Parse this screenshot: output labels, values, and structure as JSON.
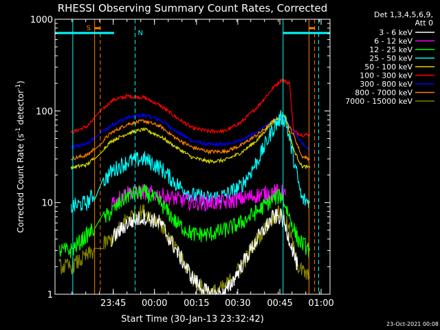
{
  "chart_data": {
    "type": "line",
    "title": "RHESSI Observing Summary Count Rates, Corrected",
    "xlabel": "Start Time (30-Jan-13 23:32:42)",
    "ylabel_main": "Corrected Count Rate (s",
    "ylabel_sup1": "-1",
    "ylabel_mid": " detector",
    "ylabel_sup2": "-1",
    "ylabel_end": ")",
    "yscale": "log",
    "ylim": [
      1,
      1000
    ],
    "xlim_minutes": [
      -16,
      18
    ],
    "y_ticks": [
      "1",
      "10",
      "100",
      "1000"
    ],
    "x_ticks": [
      {
        "t": -8.8,
        "label": "23:45"
      },
      {
        "t": -3.7,
        "label": "00:00"
      },
      {
        "t": 1.5,
        "label": "00:15"
      },
      {
        "t": 6.6,
        "label": "00:30"
      },
      {
        "t": 11.8,
        "label": "00:45"
      },
      {
        "t": 16.9,
        "label": "01:00"
      }
    ],
    "legend": {
      "header": "Det 1,3,4,5,6,9,",
      "subheader": "Att 0",
      "entries": [
        {
          "label": "3 - 6 keV",
          "color": "#ffffff"
        },
        {
          "label": "6 - 12 keV",
          "color": "#ff00ff"
        },
        {
          "label": "12 - 25 keV",
          "color": "#00ff00"
        },
        {
          "label": "25 - 50 keV",
          "color": "#00ffff"
        },
        {
          "label": "50 - 100 keV",
          "color": "#d7d700"
        },
        {
          "label": "100 - 300 keV",
          "color": "#ff0000"
        },
        {
          "label": "300 - 800 keV",
          "color": "#0000ff"
        },
        {
          "label": "800 - 7000 keV",
          "color": "#ff7f00"
        },
        {
          "label": "7000 - 15000 keV",
          "color": "#808000"
        }
      ]
    },
    "annotations": {
      "saa_label": "S",
      "night_label": "N"
    },
    "series": [
      {
        "band": "300 - 800 keV",
        "color": "#0000ff",
        "x": [
          -14,
          -12,
          -9,
          -7,
          -5,
          -3,
          -1,
          1,
          3,
          5,
          7,
          9,
          11,
          12,
          12.5,
          13.5,
          14.5,
          15.5
        ],
        "y": [
          40,
          44,
          70,
          85,
          90,
          80,
          60,
          47,
          43,
          43,
          48,
          58,
          78,
          85,
          82,
          62,
          45,
          38
        ]
      },
      {
        "band": "100 - 300 keV",
        "color": "#ff0000",
        "x": [
          -14,
          -12,
          -9,
          -7,
          -5,
          -3,
          -1,
          1,
          3,
          5,
          7,
          9,
          11,
          12,
          13,
          13.5,
          14.5,
          15.5
        ],
        "y": [
          58,
          68,
          130,
          145,
          140,
          115,
          85,
          65,
          60,
          60,
          75,
          110,
          180,
          220,
          200,
          60,
          55,
          55
        ]
      },
      {
        "band": "800 - 7000 keV",
        "color": "#ff7f00",
        "x": [
          -14,
          -12,
          -9,
          -7,
          -5,
          -3,
          -1,
          1,
          3,
          5,
          7,
          9,
          11,
          12,
          12.5,
          13.5,
          14.5,
          15.5
        ],
        "y": [
          30,
          33,
          58,
          72,
          78,
          68,
          50,
          40,
          36,
          36,
          42,
          55,
          75,
          82,
          80,
          55,
          32,
          30
        ]
      },
      {
        "band": "50 - 100 keV",
        "color": "#d7d700",
        "x": [
          -14,
          -12,
          -9,
          -7,
          -5,
          -3,
          -1,
          1,
          3,
          5,
          7,
          9,
          11,
          12,
          12.5,
          13.5,
          14.5,
          15.5
        ],
        "y": [
          24,
          26,
          47,
          57,
          63,
          53,
          40,
          31,
          28,
          29,
          35,
          48,
          78,
          90,
          88,
          38,
          25,
          24
        ]
      },
      {
        "band": "25 - 50 keV",
        "color": "#00ffff",
        "x": [
          -14,
          -12,
          -9,
          -7,
          -5,
          -3,
          -1,
          1,
          3,
          5,
          7,
          9,
          11,
          12,
          12.5,
          13.5,
          14.5,
          15.5
        ],
        "y": [
          9,
          10,
          22,
          28,
          30,
          24,
          16,
          12,
          11,
          12,
          15,
          28,
          65,
          85,
          80,
          30,
          11,
          10
        ]
      },
      {
        "band": "6 - 12 keV",
        "color": "#ff00ff",
        "x": [
          -9,
          -7,
          -5,
          -3,
          -1,
          1,
          3,
          5,
          7,
          9,
          11,
          12,
          12.5
        ],
        "y": [
          10,
          13,
          13,
          12,
          11,
          10,
          10,
          10,
          11,
          12,
          13,
          13,
          12
        ]
      },
      {
        "band": "12 - 25 keV",
        "color": "#00ff00",
        "x": [
          -15.5,
          -14,
          -9,
          -7,
          -5,
          -3,
          -1,
          1,
          3,
          5,
          7,
          9,
          11,
          12,
          13,
          14,
          15.5
        ],
        "y": [
          3,
          3,
          8,
          12,
          13,
          10,
          6,
          4.5,
          4.5,
          5,
          6,
          8,
          11,
          12,
          7,
          4,
          3
        ]
      },
      {
        "band": "7000 - 15000 keV",
        "color": "#808000",
        "x": [
          -15.5,
          -14,
          -9,
          -7,
          -5,
          -3,
          -1,
          1,
          3,
          5,
          7,
          9,
          11,
          12,
          13,
          14,
          15.5
        ],
        "y": [
          2,
          2,
          4,
          7,
          8,
          6,
          3,
          1.5,
          1,
          1.2,
          2,
          4,
          7,
          8,
          5,
          2,
          1.5
        ]
      },
      {
        "band": "3 - 6 keV",
        "color": "#ffffff",
        "x": [
          -9,
          -7,
          -5,
          -3,
          -1,
          1,
          3,
          5,
          7,
          9,
          11,
          12,
          13,
          14
        ],
        "y": [
          4,
          6,
          7,
          6,
          3,
          1.5,
          1,
          1,
          2,
          4,
          7,
          7,
          4,
          2
        ]
      }
    ]
  },
  "footer": {
    "timestamp": "23-Oct-2021 00:08"
  }
}
